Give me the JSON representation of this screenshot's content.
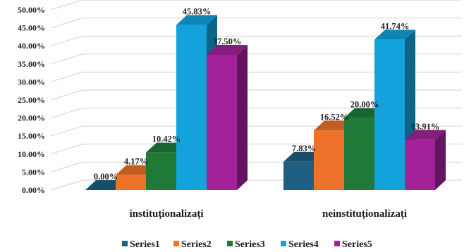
{
  "chart_data": {
    "type": "bar",
    "subtype": "3d-clustered-column",
    "categories": [
      "instituționalizați",
      "neinstituționalizați"
    ],
    "series": [
      {
        "name": "Series1",
        "values": [
          0.0,
          7.83
        ],
        "labels": [
          "0.00%",
          "7.83%"
        ],
        "color": "#1f5f82"
      },
      {
        "name": "Series2",
        "values": [
          4.17,
          16.52
        ],
        "labels": [
          "4.17%",
          "16.52%"
        ],
        "color": "#ed7128"
      },
      {
        "name": "Series3",
        "values": [
          10.42,
          20.0
        ],
        "labels": [
          "10.42%",
          "20.00%"
        ],
        "color": "#1f7a3a"
      },
      {
        "name": "Series4",
        "values": [
          45.83,
          41.74
        ],
        "labels": [
          "45.83%",
          "41.74%"
        ],
        "color": "#13a2dc"
      },
      {
        "name": "Series5",
        "values": [
          37.5,
          13.91
        ],
        "labels": [
          "37.50%",
          "13.91%"
        ],
        "color": "#a3229a"
      }
    ],
    "y_ticks": [
      "0.00%",
      "5.00%",
      "10.00%",
      "15.00%",
      "20.00%",
      "25.00%",
      "30.00%",
      "35.00%",
      "40.00%",
      "45.00%",
      "50.00%"
    ],
    "ylim": [
      0,
      50
    ],
    "grid": true,
    "legend": "bottom",
    "title": "",
    "xlabel": "",
    "ylabel": ""
  }
}
